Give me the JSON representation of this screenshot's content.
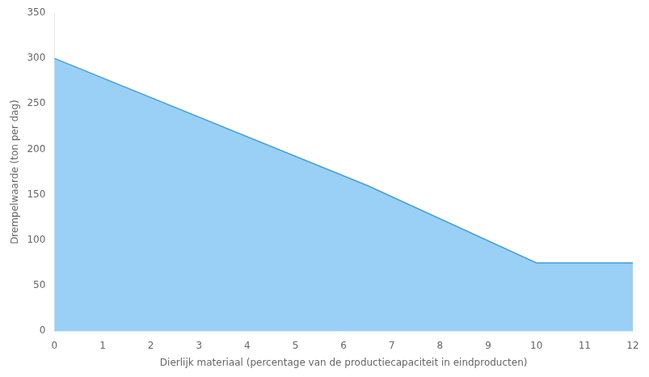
{
  "chart_data": {
    "type": "area",
    "x": [
      0,
      6.5,
      10,
      10,
      12
    ],
    "values": [
      300,
      160,
      75,
      75,
      75
    ],
    "xlabel": "Dierlijk materiaal (percentage van de productiecapaciteit in eindproducten)",
    "ylabel": "Drempelwaarde (ton per dag)",
    "xlim": [
      0,
      12
    ],
    "ylim": [
      0,
      350
    ],
    "xticks": [
      0,
      1,
      2,
      3,
      4,
      5,
      6,
      7,
      8,
      9,
      10,
      11,
      12
    ],
    "yticks": [
      0,
      50,
      100,
      150,
      200,
      250,
      300,
      350
    ],
    "grid": false
  }
}
